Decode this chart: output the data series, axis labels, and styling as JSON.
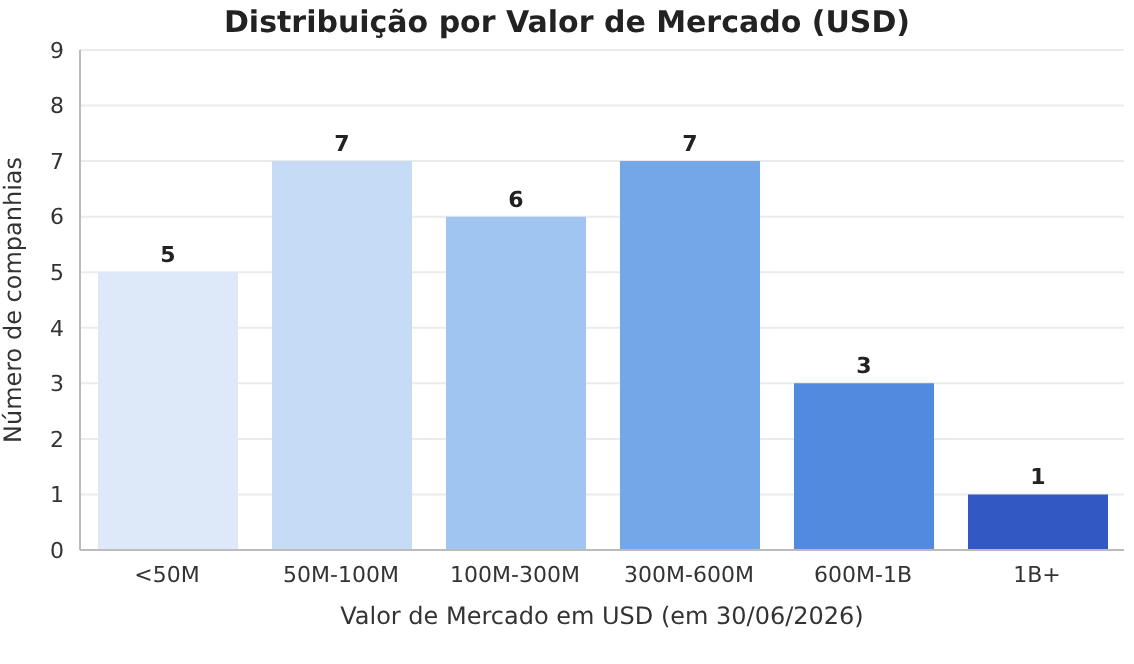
{
  "chart_data": {
    "type": "bar",
    "title": "Distribuição por Valor de Mercado (USD)",
    "xlabel": "Valor de Mercado em USD (em 30/06/2026)",
    "ylabel": "Número de companhias",
    "categories": [
      "<50M",
      "50M-100M",
      "100M-300M",
      "300M-600M",
      "600M-1B",
      "1B+"
    ],
    "values": [
      5,
      7,
      6,
      7,
      3,
      1
    ],
    "colors": [
      "#dde8f8",
      "#c6dcf6",
      "#9fc5f0",
      "#72a8e8",
      "#528ae0",
      "#3258c4"
    ],
    "ylim": [
      0,
      9
    ],
    "yticks": [
      0,
      1,
      2,
      3,
      4,
      5,
      6,
      7,
      8,
      9
    ],
    "grid": "y",
    "data_labels": true
  }
}
